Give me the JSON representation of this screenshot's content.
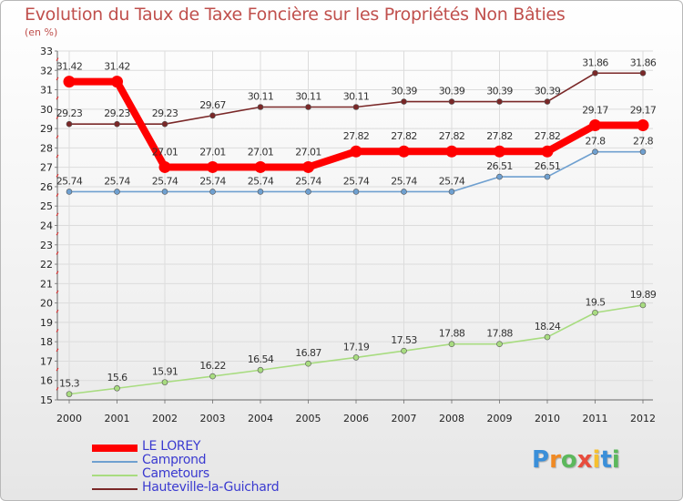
{
  "logo": {
    "text": "Proxiti",
    "colors": [
      "#3a8fd9",
      "#f08a24",
      "#5cb85c",
      "#e84c3d",
      "#f6c02f",
      "#3a8fd9",
      "#5cb85c"
    ]
  },
  "chart_data": {
    "type": "line",
    "title": "Evolution du Taux de Taxe Foncière sur les Propriétés Non Bâties",
    "subtitle": "(en %)",
    "xlabel": "",
    "ylabel": "",
    "ylim": [
      15,
      33
    ],
    "yticks": [
      15,
      16,
      17,
      18,
      19,
      20,
      21,
      22,
      23,
      24,
      25,
      26,
      27,
      28,
      29,
      30,
      31,
      32,
      33
    ],
    "categories": [
      "2000",
      "2001",
      "2002",
      "2003",
      "2004",
      "2005",
      "2006",
      "2007",
      "2008",
      "2009",
      "2010",
      "2011",
      "2012"
    ],
    "legend_position": "bottom-left",
    "series": [
      {
        "name": "Hauteville-la-Guichard",
        "color": "#7a2828",
        "values": [
          29.23,
          29.23,
          29.23,
          29.67,
          30.11,
          30.11,
          30.11,
          30.39,
          30.39,
          30.39,
          30.39,
          31.86,
          31.86
        ],
        "labels": [
          "29.23",
          "29.23",
          "29.23",
          "29.67",
          "30.11",
          "30.11",
          "30.11",
          "30.39",
          "30.39",
          "30.39",
          "30.39",
          "31.86",
          "31.86"
        ]
      },
      {
        "name": "Camprond",
        "color": "#6fa0d0",
        "values": [
          25.74,
          25.74,
          25.74,
          25.74,
          25.74,
          25.74,
          25.74,
          25.74,
          25.74,
          26.51,
          26.51,
          27.8,
          27.8
        ],
        "labels": [
          "25.74",
          "25.74",
          "25.74",
          "25.74",
          "25.74",
          "25.74",
          "25.74",
          "25.74",
          "25.74",
          "26.51",
          "26.51",
          "27.8",
          "27.8"
        ]
      },
      {
        "name": "Cametours",
        "color": "#a8dc80",
        "values": [
          15.3,
          15.6,
          15.91,
          16.22,
          16.54,
          16.87,
          17.19,
          17.53,
          17.88,
          17.88,
          18.24,
          19.5,
          19.89
        ],
        "labels": [
          "15.3",
          "15.6",
          "15.91",
          "16.22",
          "16.54",
          "16.87",
          "17.19",
          "17.53",
          "17.88",
          "17.88",
          "18.24",
          "19.5",
          "19.89"
        ]
      },
      {
        "name": "LE LOREY",
        "color": "#ff0000",
        "values": [
          31.42,
          31.42,
          27.01,
          27.01,
          27.01,
          27.01,
          27.82,
          27.82,
          27.82,
          27.82,
          27.82,
          29.17,
          29.17
        ],
        "labels": [
          "31.42",
          "31.42",
          "27.01",
          "27.01",
          "27.01",
          "27.01",
          "27.82",
          "27.82",
          "27.82",
          "27.82",
          "27.82",
          "29.17",
          "29.17"
        ]
      }
    ],
    "legend": [
      "LE LOREY",
      "Camprond",
      "Cametours",
      "Hauteville-la-Guichard"
    ]
  }
}
